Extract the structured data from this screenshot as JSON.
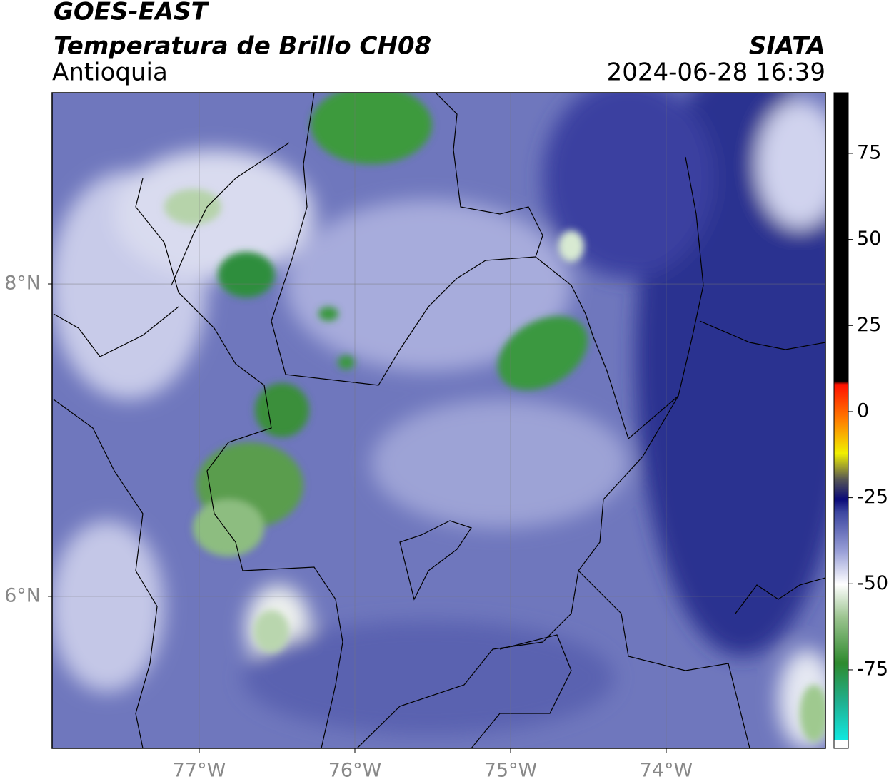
{
  "header": {
    "satellite": "GOES-EAST",
    "product": "Temperatura de Brillo CH08",
    "region": "Antioquia",
    "source": "SIATA",
    "datetime": "2024-06-28 16:39"
  },
  "map": {
    "xlim": [
      -77.945,
      -72.977
    ],
    "ylim": [
      5.027,
      9.224
    ],
    "xticks": [
      {
        "value": -77,
        "label": "77°W"
      },
      {
        "value": -76,
        "label": "76°W"
      },
      {
        "value": -75,
        "label": "75°W"
      },
      {
        "value": -74,
        "label": "74°W"
      }
    ],
    "yticks": [
      {
        "value": 8,
        "label": "8°N"
      },
      {
        "value": 6,
        "label": "6°N"
      }
    ],
    "grid": true
  },
  "colorbar": {
    "lim": [
      -97.8,
      92.6
    ],
    "ticks": [
      75,
      50,
      25,
      0,
      -25,
      -50,
      -75
    ]
  }
}
